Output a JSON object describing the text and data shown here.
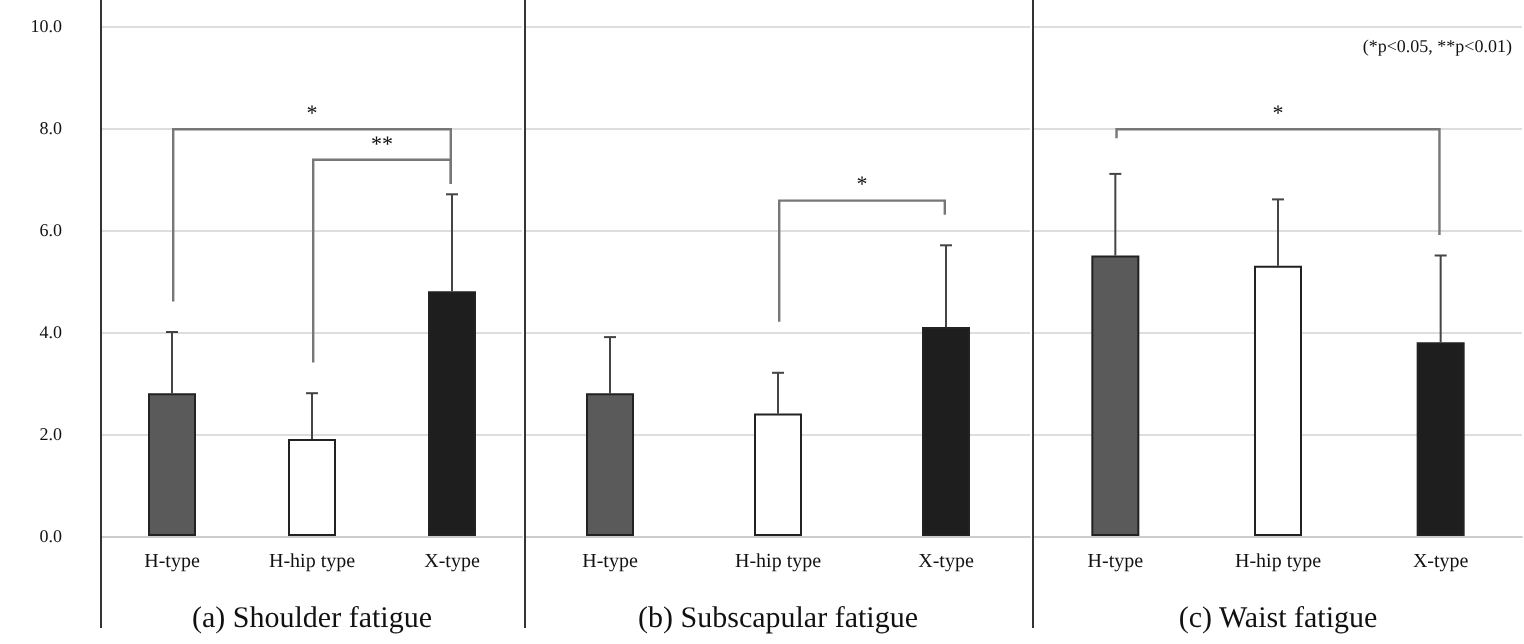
{
  "chart_data": [
    {
      "type": "bar",
      "xlabel": "(a) Shoulder fatigue",
      "categories": [
        "H-type",
        "H-hip type",
        "X-type"
      ],
      "values": [
        2.8,
        1.9,
        4.8
      ],
      "colors": [
        "#5a5a5a",
        "#ffffff",
        "#1e1e1e"
      ],
      "errors": [
        [
          2.8,
          4.0
        ],
        [
          1.9,
          2.8
        ],
        [
          4.8,
          6.7
        ]
      ],
      "ylim": [
        0,
        10
      ],
      "yticks": [
        {
          "value": 0,
          "label": "0.0"
        },
        {
          "value": 2,
          "label": "2.0"
        },
        {
          "value": 4,
          "label": "4.0"
        },
        {
          "value": 6,
          "label": "6.0"
        },
        {
          "value": 8,
          "label": "8.0"
        },
        {
          "value": 10,
          "label": "10.0"
        }
      ],
      "grid": "y",
      "annotations": [
        "*",
        "**"
      ]
    },
    {
      "type": "bar",
      "xlabel": "(b) Subscapular fatigue",
      "categories": [
        "H-type",
        "H-hip type",
        "X-type"
      ],
      "values": [
        2.8,
        2.4,
        4.1
      ],
      "colors": [
        "#5a5a5a",
        "#ffffff",
        "#1e1e1e"
      ],
      "errors": [
        [
          2.8,
          3.9
        ],
        [
          2.4,
          3.2
        ],
        [
          4.1,
          5.7
        ]
      ],
      "ylim": [
        0,
        10
      ],
      "yticks": [
        0,
        2,
        4,
        6,
        8,
        10
      ],
      "tick_labels": "x",
      "grid": "y",
      "annotations": [
        "*"
      ]
    },
    {
      "type": "bar",
      "xlabel": "(c) Waist fatigue",
      "categories": [
        "H-type",
        "H-hip type",
        "X-type"
      ],
      "values": [
        5.5,
        5.3,
        3.8
      ],
      "colors": [
        "#5a5a5a",
        "#ffffff",
        "#1e1e1e"
      ],
      "errors": [
        [
          5.5,
          7.1
        ],
        [
          5.3,
          6.6
        ],
        [
          3.8,
          5.5
        ]
      ],
      "ylim": [
        0,
        10
      ],
      "yticks": [
        0,
        2,
        4,
        6,
        8,
        10
      ],
      "tick_labels": "x",
      "grid": "y",
      "annotations": [
        "*",
        "(*p<0.05, **p<0.01)"
      ]
    }
  ]
}
